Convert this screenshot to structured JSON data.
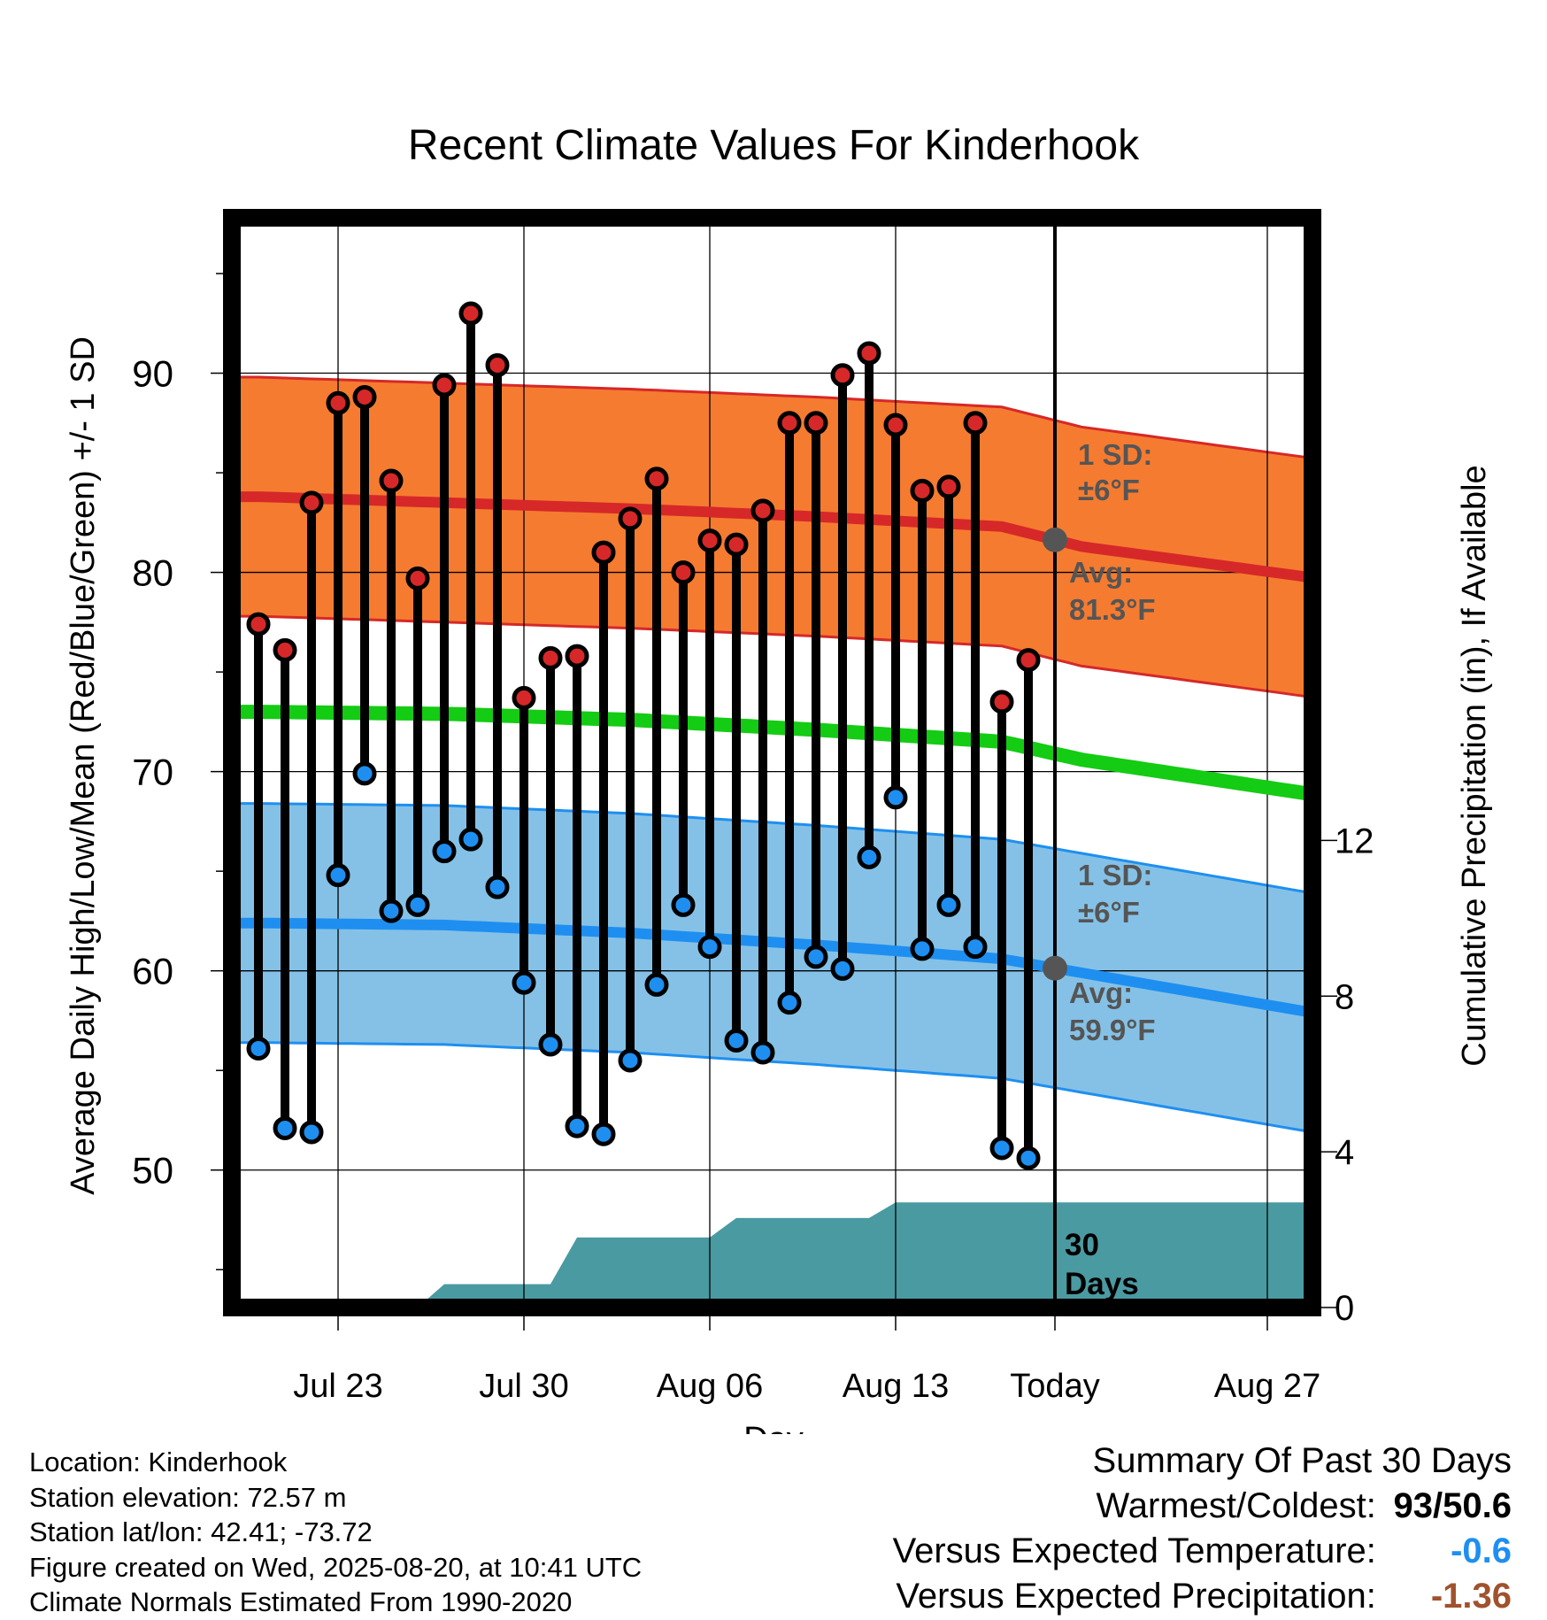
{
  "chart_data": {
    "type": "line",
    "title": "Recent Climate Values For Kinderhook",
    "xlabel": "Day",
    "ylabel_left": "Average Daily High/Low/Mean (Red/Blue/Green) +/- 1 SD",
    "ylabel_right": "Cumulative Precipitation (in), If Available",
    "ylim_left": [
      43.1,
      97.8
    ],
    "ylim_right": [
      0,
      28
    ],
    "x_ticks": [
      "Jul 23",
      "Jul 30",
      "Aug 06",
      "Aug 13",
      "Today",
      "Aug 27"
    ],
    "y_ticks_left": [
      "50",
      "60",
      "70",
      "80",
      "90"
    ],
    "y_ticks_right": [
      "0",
      "4",
      "8",
      "12"
    ],
    "grid": true,
    "today_label": "30 Days",
    "daily": {
      "high": [
        77.4,
        76.1,
        83.5,
        88.5,
        88.8,
        84.6,
        79.7,
        89.4,
        93.0,
        90.4,
        73.7,
        75.7,
        75.8,
        81.0,
        82.7,
        84.7,
        80.0,
        81.6,
        81.4,
        83.1,
        87.5,
        87.5,
        89.9,
        91.0,
        87.4,
        84.1,
        84.3,
        87.5,
        73.5,
        75.6
      ],
      "low": [
        56.1,
        52.1,
        51.9,
        64.8,
        69.9,
        63.0,
        63.3,
        66.0,
        66.6,
        64.2,
        59.4,
        56.3,
        52.2,
        51.8,
        55.5,
        59.3,
        63.3,
        61.2,
        56.5,
        55.9,
        58.4,
        60.7,
        60.1,
        65.7,
        68.7,
        61.1,
        63.3,
        61.2,
        51.1,
        50.6
      ]
    },
    "series": [
      {
        "name": "Normal High",
        "values": [
          83.8,
          83.5,
          83.2,
          82.8,
          82.3,
          81.3,
          79.5
        ],
        "plus_minus_sd": 6
      },
      {
        "name": "Normal Low",
        "values": [
          62.4,
          62.3,
          61.9,
          61.3,
          60.6,
          59.9,
          57.6
        ],
        "plus_minus_sd": 6
      },
      {
        "name": "Normal Mean",
        "values": [
          73.0,
          72.9,
          72.6,
          72.1,
          71.5,
          70.6,
          68.6
        ]
      }
    ],
    "normal_days": [
      "Jul 20",
      "Jul 27",
      "Aug 03",
      "Aug 10",
      "Aug 17",
      "Aug 20",
      "Aug 30"
    ],
    "precip_cumulative": {
      "days": [
        "Jul 26",
        "Jul 27",
        "Jul 31",
        "Aug 01",
        "Aug 06",
        "Aug 07",
        "Aug 12",
        "Aug 13",
        "Aug 30"
      ],
      "values": [
        0,
        0.6,
        0.6,
        1.8,
        1.8,
        2.3,
        2.3,
        2.7,
        2.7
      ]
    },
    "annotations": {
      "high_sd": "1 SD:",
      "high_sd_value": "±6°F",
      "high_avg": "Avg:",
      "high_avg_value": "81.3°F",
      "low_sd": "1 SD:",
      "low_sd_value": "±6°F",
      "low_avg": "Avg:",
      "low_avg_value": "59.9°F"
    },
    "colors": {
      "high_band": "#f57b30",
      "high_line": "#d62828",
      "low_band": "#85c1e6",
      "low_line": "#1e8ff0",
      "mean_line": "#13cc13",
      "precip": "#4a9aa2",
      "high_point": "#d62828",
      "low_point": "#1e8ff0",
      "today_marker": "#555555"
    }
  },
  "info": {
    "location": "Location: Kinderhook",
    "elevation": "Station elevation: 72.57 m",
    "latlon": "Station lat/lon: 42.41; -73.72",
    "created": "Figure created on Wed, 2025-08-20, at 10:41 UTC",
    "normals": "Climate Normals Estimated From 1990-2020"
  },
  "summary": {
    "heading": "Summary Of Past 30 Days",
    "warm_cold_label": "Warmest/Coldest:",
    "warm_cold_value": "93/50.6",
    "temp_label": "Versus Expected Temperature:",
    "temp_value": "-0.6",
    "temp_color": "#1e8ff0",
    "precip_label": "Versus Expected Precipitation:",
    "precip_value": "-1.36",
    "precip_color": "#a0522d"
  }
}
